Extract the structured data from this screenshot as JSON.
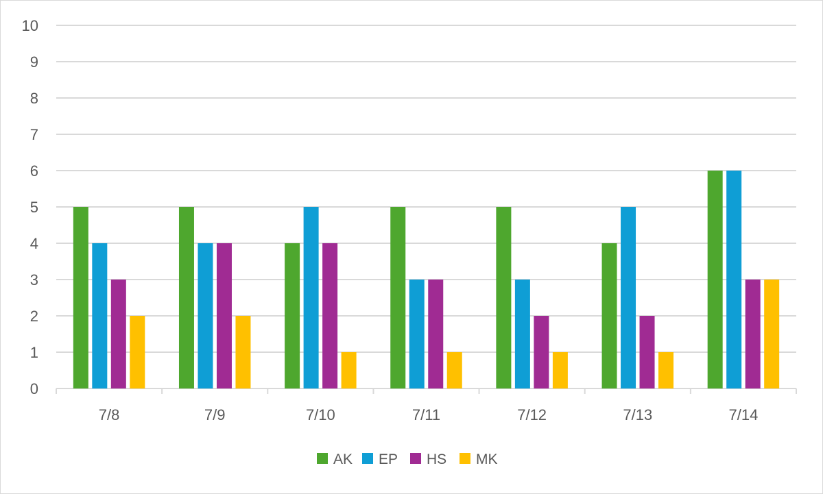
{
  "chart_data": {
    "type": "bar",
    "categories": [
      "7/8",
      "7/9",
      "7/10",
      "7/11",
      "7/12",
      "7/13",
      "7/14"
    ],
    "series": [
      {
        "name": "AK",
        "color": "#4ea72e",
        "values": [
          5,
          5,
          4,
          5,
          5,
          4,
          6
        ]
      },
      {
        "name": "EP",
        "color": "#0f9ed5",
        "values": [
          4,
          4,
          5,
          3,
          3,
          5,
          6
        ]
      },
      {
        "name": "HS",
        "color": "#a02b93",
        "values": [
          3,
          4,
          4,
          3,
          2,
          2,
          3
        ]
      },
      {
        "name": "MK",
        "color": "#ffc000",
        "values": [
          2,
          2,
          1,
          1,
          1,
          1,
          3
        ]
      }
    ],
    "y_ticks": [
      "0",
      "1",
      "2",
      "3",
      "4",
      "5",
      "6",
      "7",
      "8",
      "9",
      "10"
    ],
    "ylim": [
      0,
      10
    ],
    "grid": true,
    "legend_position": "bottom"
  }
}
